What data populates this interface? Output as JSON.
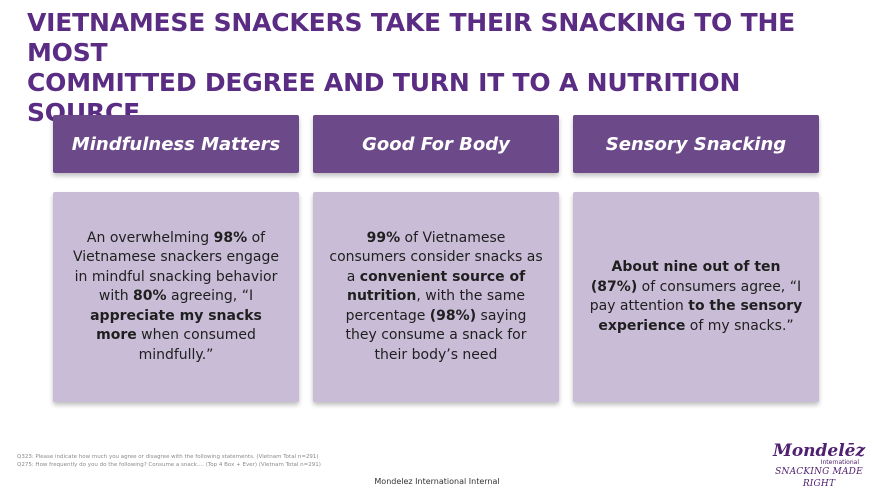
{
  "title": {
    "line1": "VIETNAMESE SNACKERS TAKE THEIR SNACKING TO THE MOST",
    "line2": "COMMITTED DEGREE AND TURN IT TO A NUTRITION SOURCE"
  },
  "columns": [
    {
      "header": "Mindfulness Matters",
      "body": {
        "p1": "An overwhelming ",
        "b1": "98%",
        "p2": " of Vietnamese snackers engage in mindful snacking behavior with ",
        "b2": "80%",
        "p3": " agreeing, “I ",
        "b3": "appreciate my snacks more",
        "p4": " when consumed mindfully.”"
      }
    },
    {
      "header": "Good For Body",
      "body": {
        "b1": "99%",
        "p1": " of Vietnamese consumers consider snacks as a ",
        "b2": "convenient source of nutrition",
        "p2": ", with the same percentage ",
        "b3": "(98%)",
        "p3": " saying they consume a snack for their body’s need"
      }
    },
    {
      "header": "Sensory Snacking",
      "body": {
        "b1": "About nine out of ten (87%)",
        "p1": " of consumers agree, “I pay attention ",
        "b2": "to the sensory experience",
        "p2": " of my snacks.”"
      }
    }
  ],
  "footnotes": [
    "Q323: Please indicate how much you agree or disagree with the following statements. (Vietnam Total n=291)",
    "Q275: How frequently do you do the following? Consume a snack.... (Top 4 Box + Ever) (Vietnam Total n=291)"
  ],
  "footer": "Mondelez International Internal",
  "logo": {
    "name": "Mondelēz",
    "sub": "International",
    "tagline": "SNACKING MADE RIGHT"
  },
  "colors": {
    "title": "#5b2c83",
    "header_bg": "#6c4a8a",
    "card_bg": "#c8bcd6"
  }
}
